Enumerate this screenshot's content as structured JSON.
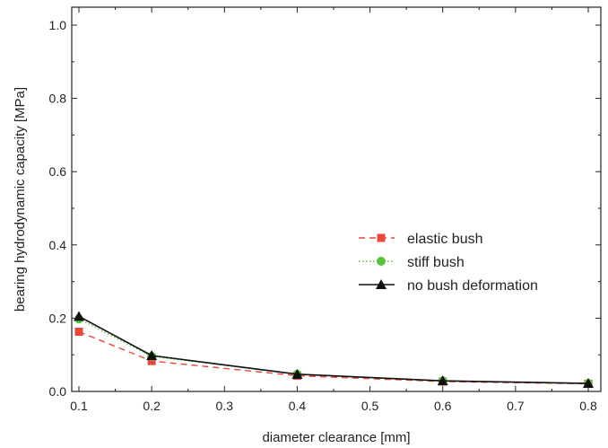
{
  "chart_data": {
    "type": "line",
    "xlabel": "diameter clearance [mm]",
    "ylabel": "bearing hydrodynamic capacity [MPa]",
    "xlim": [
      0.1,
      0.8
    ],
    "ylim": [
      0.0,
      1.0
    ],
    "x_ticks": [
      "0.1",
      "0.2",
      "0.3",
      "0.4",
      "0.5",
      "0.6",
      "0.7",
      "0.8"
    ],
    "y_ticks": [
      "0.0",
      "0.2",
      "0.4",
      "0.6",
      "0.8",
      "1.0"
    ],
    "grid": false,
    "legend_position": "center-right",
    "series": [
      {
        "name": "elastic bush",
        "color": "#e8483a",
        "line_style": "dashed",
        "marker": "square",
        "x": [
          0.1,
          0.2,
          0.4,
          0.6,
          0.8
        ],
        "y": [
          0.163,
          0.083,
          0.043,
          0.027,
          0.021
        ]
      },
      {
        "name": "stiff bush",
        "color": "#5cc040",
        "line_style": "dotted",
        "marker": "circle",
        "x": [
          0.1,
          0.2,
          0.4,
          0.6,
          0.8
        ],
        "y": [
          0.198,
          0.096,
          0.047,
          0.029,
          0.022
        ]
      },
      {
        "name": "no bush deformation",
        "color": "#111111",
        "line_style": "solid",
        "marker": "triangle",
        "x": [
          0.1,
          0.2,
          0.4,
          0.6,
          0.8
        ],
        "y": [
          0.205,
          0.098,
          0.047,
          0.029,
          0.022
        ]
      }
    ]
  }
}
